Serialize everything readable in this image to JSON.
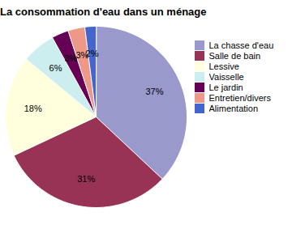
{
  "chart_data": {
    "type": "pie",
    "title": "La consommation d'eau dans un ménage",
    "categories": [
      "La chasse d'eau",
      "Salle de bain",
      "Lessive",
      "Vaisselle",
      "Le jardin",
      "Entretien/divers",
      "Alimentation"
    ],
    "values": [
      37,
      31,
      18,
      6,
      3,
      3,
      2
    ],
    "value_labels": [
      "37%",
      "31%",
      "18%",
      "6%",
      "3%",
      "3%",
      "2%"
    ],
    "colors": [
      "#9999cc",
      "#993355",
      "#ffffdd",
      "#cceeee",
      "#660055",
      "#ee9988",
      "#4466cc"
    ],
    "data_labels": true,
    "legend": "right"
  }
}
